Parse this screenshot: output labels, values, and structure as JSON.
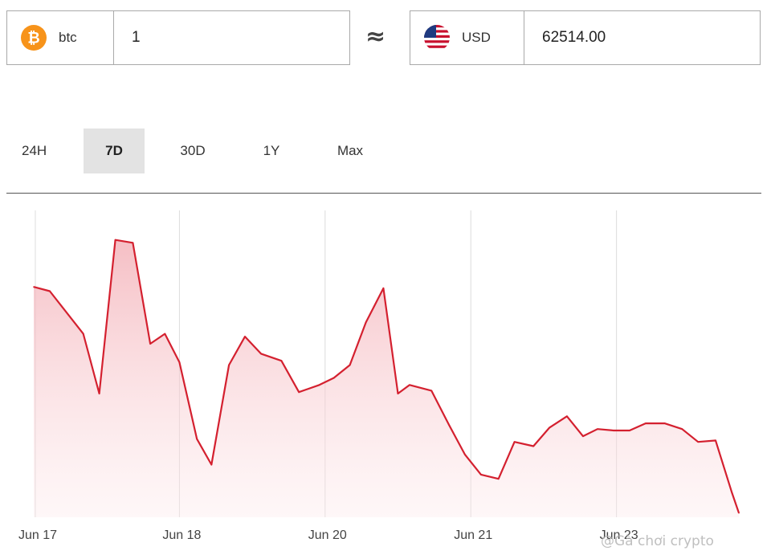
{
  "converter": {
    "from": {
      "icon": "bitcoin-icon",
      "code": "btc",
      "amount": "1",
      "color": "#f7931a"
    },
    "approx_symbol": "≈",
    "to": {
      "icon": "us-flag-icon",
      "code": "USD",
      "amount": "62514.00"
    }
  },
  "tabs": [
    {
      "label": "24H",
      "active": false
    },
    {
      "label": "7D",
      "active": true
    },
    {
      "label": "30D",
      "active": false
    },
    {
      "label": "1Y",
      "active": false
    },
    {
      "label": "Max",
      "active": false
    }
  ],
  "watermark": "@Gà chơi crypto",
  "chart_data": {
    "type": "area",
    "line_color": "#d4202f",
    "fill_color": "#f7c9ce",
    "grid": "vertical",
    "x_ticks": [
      "Jun 17",
      "Jun 18",
      "Jun 20",
      "Jun 21",
      "Jun 23"
    ],
    "x": [
      0.0,
      0.11,
      0.34,
      0.45,
      0.56,
      0.68,
      0.8,
      0.9,
      1.0,
      1.12,
      1.22,
      1.34,
      1.45,
      1.56,
      1.7,
      1.82,
      1.96,
      2.06,
      2.17,
      2.28,
      2.4,
      2.5,
      2.58,
      2.73,
      2.85,
      2.96,
      3.07,
      3.19,
      3.3,
      3.43,
      3.54,
      3.66,
      3.77,
      3.87,
      3.98,
      4.09,
      4.2,
      4.33,
      4.45,
      4.56,
      4.68,
      4.79,
      4.84
    ],
    "y": [
      66250,
      66220,
      65920,
      65500,
      66580,
      66560,
      65850,
      65920,
      65720,
      65180,
      65000,
      65700,
      65900,
      65780,
      65730,
      65510,
      65560,
      65610,
      65700,
      66000,
      66240,
      65500,
      65560,
      65520,
      65280,
      65070,
      64930,
      64900,
      65160,
      65130,
      65260,
      65340,
      65200,
      65250,
      65240,
      65240,
      65290,
      65290,
      65250,
      65160,
      65170,
      64810,
      64660
    ],
    "ylim": [
      64630,
      66810
    ]
  }
}
